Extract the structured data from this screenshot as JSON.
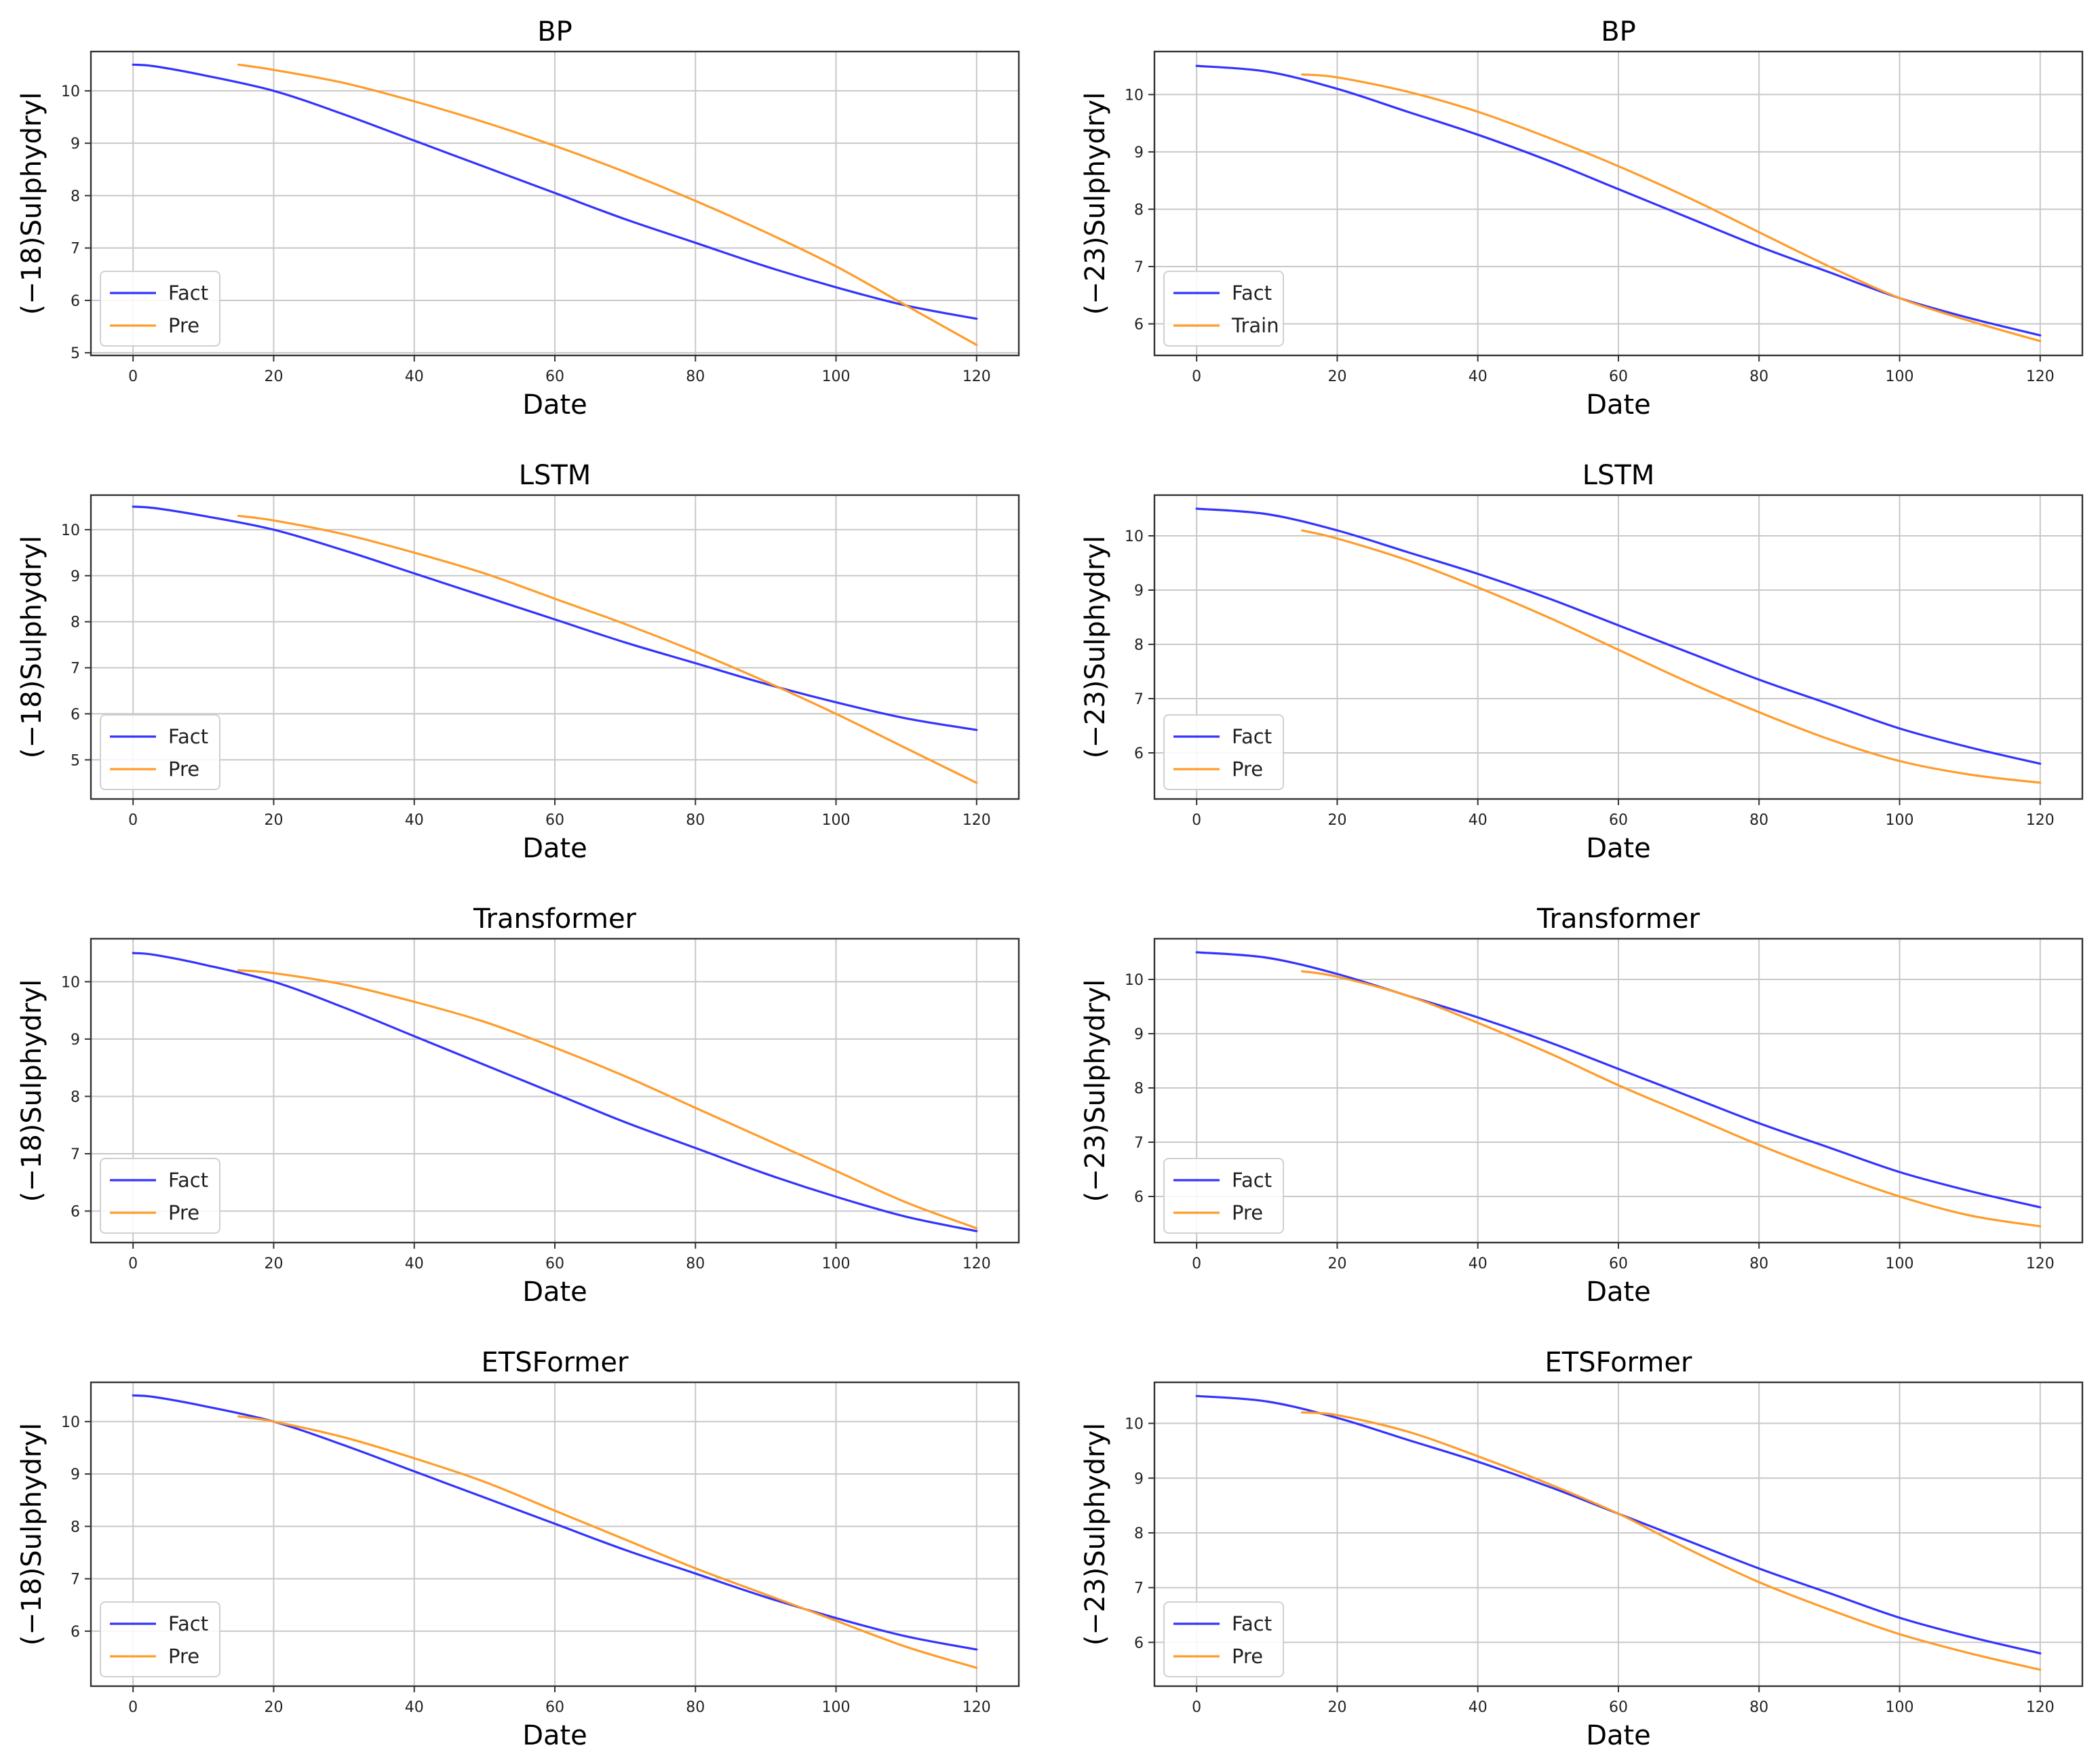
{
  "colors": {
    "fact": "#3333ff",
    "pred": "#ff9c2a",
    "grid": "#c8c8c8",
    "axis": "#333333"
  },
  "chart_data": [
    {
      "type": "line",
      "title": "BP",
      "xlabel": "Date",
      "ylabel": "(−18)Sulphydryl",
      "xlim": [
        -6,
        126
      ],
      "ylim": [
        4.95,
        10.75
      ],
      "xticks": [
        0,
        20,
        40,
        60,
        80,
        100,
        120
      ],
      "yticks": [
        5,
        6,
        7,
        8,
        9,
        10
      ],
      "grid": true,
      "legend": "lower-left",
      "series": [
        {
          "name": "Fact",
          "color": "fact",
          "x": [
            0,
            3,
            10,
            20,
            30,
            40,
            50,
            60,
            70,
            80,
            90,
            100,
            110,
            120
          ],
          "y": [
            10.5,
            10.47,
            10.3,
            10.0,
            9.55,
            9.05,
            8.55,
            8.05,
            7.55,
            7.1,
            6.65,
            6.25,
            5.9,
            5.65
          ]
        },
        {
          "name": "Pre",
          "color": "pred",
          "x": [
            15,
            20,
            30,
            40,
            50,
            60,
            70,
            80,
            90,
            100,
            110,
            120
          ],
          "y": [
            10.5,
            10.4,
            10.15,
            9.8,
            9.4,
            8.95,
            8.45,
            7.9,
            7.3,
            6.65,
            5.9,
            5.15
          ]
        }
      ]
    },
    {
      "type": "line",
      "title": "BP",
      "xlabel": "Date",
      "ylabel": "(−23)Sulphydryl",
      "xlim": [
        -6,
        126
      ],
      "ylim": [
        5.45,
        10.75
      ],
      "xticks": [
        0,
        20,
        40,
        60,
        80,
        100,
        120
      ],
      "yticks": [
        6,
        7,
        8,
        9,
        10
      ],
      "grid": true,
      "legend": "lower-left",
      "series": [
        {
          "name": "Fact",
          "color": "fact",
          "x": [
            0,
            10,
            20,
            30,
            40,
            50,
            60,
            70,
            80,
            90,
            100,
            110,
            120
          ],
          "y": [
            10.5,
            10.4,
            10.1,
            9.7,
            9.3,
            8.85,
            8.35,
            7.85,
            7.35,
            6.9,
            6.45,
            6.1,
            5.8
          ]
        },
        {
          "name": "Train",
          "color": "pred",
          "x": [
            15,
            20,
            30,
            40,
            50,
            60,
            70,
            80,
            90,
            100,
            110,
            120
          ],
          "y": [
            10.35,
            10.3,
            10.05,
            9.7,
            9.25,
            8.75,
            8.2,
            7.6,
            7.0,
            6.45,
            6.05,
            5.7
          ]
        }
      ]
    },
    {
      "type": "line",
      "title": "LSTM",
      "xlabel": "Date",
      "ylabel": "(−18)Sulphydryl",
      "xlim": [
        -6,
        126
      ],
      "ylim": [
        4.15,
        10.75
      ],
      "xticks": [
        0,
        20,
        40,
        60,
        80,
        100,
        120
      ],
      "yticks": [
        5,
        6,
        7,
        8,
        9,
        10
      ],
      "grid": true,
      "legend": "lower-left",
      "series": [
        {
          "name": "Fact",
          "color": "fact",
          "x": [
            0,
            3,
            10,
            20,
            30,
            40,
            50,
            60,
            70,
            80,
            90,
            100,
            110,
            120
          ],
          "y": [
            10.5,
            10.47,
            10.3,
            10.0,
            9.55,
            9.05,
            8.55,
            8.05,
            7.55,
            7.1,
            6.65,
            6.25,
            5.9,
            5.65
          ]
        },
        {
          "name": "Pre",
          "color": "pred",
          "x": [
            15,
            20,
            30,
            40,
            50,
            60,
            70,
            80,
            90,
            100,
            110,
            120
          ],
          "y": [
            10.3,
            10.2,
            9.9,
            9.5,
            9.05,
            8.5,
            7.95,
            7.35,
            6.7,
            6.0,
            5.25,
            4.5
          ]
        }
      ]
    },
    {
      "type": "line",
      "title": "LSTM",
      "xlabel": "Date",
      "ylabel": "(−23)Sulphydryl",
      "xlim": [
        -6,
        126
      ],
      "ylim": [
        5.15,
        10.75
      ],
      "xticks": [
        0,
        20,
        40,
        60,
        80,
        100,
        120
      ],
      "yticks": [
        6,
        7,
        8,
        9,
        10
      ],
      "grid": true,
      "legend": "lower-left",
      "series": [
        {
          "name": "Fact",
          "color": "fact",
          "x": [
            0,
            10,
            20,
            30,
            40,
            50,
            60,
            70,
            80,
            90,
            100,
            110,
            120
          ],
          "y": [
            10.5,
            10.4,
            10.1,
            9.7,
            9.3,
            8.85,
            8.35,
            7.85,
            7.35,
            6.9,
            6.45,
            6.1,
            5.8
          ]
        },
        {
          "name": "Pre",
          "color": "pred",
          "x": [
            15,
            20,
            30,
            40,
            50,
            60,
            70,
            80,
            90,
            100,
            110,
            120
          ],
          "y": [
            10.1,
            9.95,
            9.55,
            9.05,
            8.5,
            7.9,
            7.3,
            6.75,
            6.25,
            5.85,
            5.6,
            5.45
          ]
        }
      ]
    },
    {
      "type": "line",
      "title": "Transformer",
      "xlabel": "Date",
      "ylabel": "(−18)Sulphydryl",
      "xlim": [
        -6,
        126
      ],
      "ylim": [
        5.45,
        10.75
      ],
      "xticks": [
        0,
        20,
        40,
        60,
        80,
        100,
        120
      ],
      "yticks": [
        6,
        7,
        8,
        9,
        10
      ],
      "grid": true,
      "legend": "lower-left",
      "series": [
        {
          "name": "Fact",
          "color": "fact",
          "x": [
            0,
            3,
            10,
            20,
            30,
            40,
            50,
            60,
            70,
            80,
            90,
            100,
            110,
            120
          ],
          "y": [
            10.5,
            10.47,
            10.3,
            10.0,
            9.55,
            9.05,
            8.55,
            8.05,
            7.55,
            7.1,
            6.65,
            6.25,
            5.9,
            5.65
          ]
        },
        {
          "name": "Pre",
          "color": "pred",
          "x": [
            15,
            20,
            30,
            40,
            50,
            60,
            70,
            80,
            90,
            100,
            110,
            120
          ],
          "y": [
            10.2,
            10.15,
            9.95,
            9.65,
            9.3,
            8.85,
            8.35,
            7.8,
            7.25,
            6.7,
            6.15,
            5.7
          ]
        }
      ]
    },
    {
      "type": "line",
      "title": "Transformer",
      "xlabel": "Date",
      "ylabel": "(−23)Sulphydryl",
      "xlim": [
        -6,
        126
      ],
      "ylim": [
        5.15,
        10.75
      ],
      "xticks": [
        0,
        20,
        40,
        60,
        80,
        100,
        120
      ],
      "yticks": [
        6,
        7,
        8,
        9,
        10
      ],
      "grid": true,
      "legend": "lower-left",
      "series": [
        {
          "name": "Fact",
          "color": "fact",
          "x": [
            0,
            10,
            20,
            30,
            40,
            50,
            60,
            70,
            80,
            90,
            100,
            110,
            120
          ],
          "y": [
            10.5,
            10.4,
            10.1,
            9.7,
            9.3,
            8.85,
            8.35,
            7.85,
            7.35,
            6.9,
            6.45,
            6.1,
            5.8
          ]
        },
        {
          "name": "Pre",
          "color": "pred",
          "x": [
            15,
            20,
            30,
            40,
            50,
            60,
            70,
            80,
            90,
            100,
            110,
            120
          ],
          "y": [
            10.15,
            10.05,
            9.7,
            9.2,
            8.65,
            8.05,
            7.5,
            6.95,
            6.45,
            6.0,
            5.65,
            5.45
          ]
        }
      ]
    },
    {
      "type": "line",
      "title": "ETSFormer",
      "xlabel": "Date",
      "ylabel": "(−18)Sulphydryl",
      "xlim": [
        -6,
        126
      ],
      "ylim": [
        4.95,
        10.75
      ],
      "xticks": [
        0,
        20,
        40,
        60,
        80,
        100,
        120
      ],
      "yticks": [
        6,
        7,
        8,
        9,
        10
      ],
      "grid": true,
      "legend": "lower-left",
      "series": [
        {
          "name": "Fact",
          "color": "fact",
          "x": [
            0,
            3,
            10,
            20,
            30,
            40,
            50,
            60,
            70,
            80,
            90,
            100,
            110,
            120
          ],
          "y": [
            10.5,
            10.47,
            10.3,
            10.0,
            9.55,
            9.05,
            8.55,
            8.05,
            7.55,
            7.1,
            6.65,
            6.25,
            5.9,
            5.65
          ]
        },
        {
          "name": "Pre",
          "color": "pred",
          "x": [
            15,
            20,
            30,
            40,
            50,
            60,
            70,
            80,
            90,
            100,
            110,
            120
          ],
          "y": [
            10.1,
            10.0,
            9.7,
            9.3,
            8.85,
            8.3,
            7.75,
            7.2,
            6.7,
            6.2,
            5.7,
            5.3
          ]
        }
      ]
    },
    {
      "type": "line",
      "title": "ETSFormer",
      "xlabel": "Date",
      "ylabel": "(−23)Sulphydryl",
      "xlim": [
        -6,
        126
      ],
      "ylim": [
        5.2,
        10.75
      ],
      "xticks": [
        0,
        20,
        40,
        60,
        80,
        100,
        120
      ],
      "yticks": [
        6,
        7,
        8,
        9,
        10
      ],
      "grid": true,
      "legend": "lower-left",
      "series": [
        {
          "name": "Fact",
          "color": "fact",
          "x": [
            0,
            10,
            20,
            30,
            40,
            50,
            60,
            70,
            80,
            90,
            100,
            110,
            120
          ],
          "y": [
            10.5,
            10.4,
            10.1,
            9.7,
            9.3,
            8.85,
            8.35,
            7.85,
            7.35,
            6.9,
            6.45,
            6.1,
            5.8
          ]
        },
        {
          "name": "Pre",
          "color": "pred",
          "x": [
            15,
            20,
            30,
            40,
            50,
            60,
            70,
            80,
            90,
            100,
            110,
            120
          ],
          "y": [
            10.2,
            10.15,
            9.85,
            9.4,
            8.9,
            8.35,
            7.7,
            7.1,
            6.6,
            6.15,
            5.8,
            5.5
          ]
        }
      ]
    }
  ]
}
